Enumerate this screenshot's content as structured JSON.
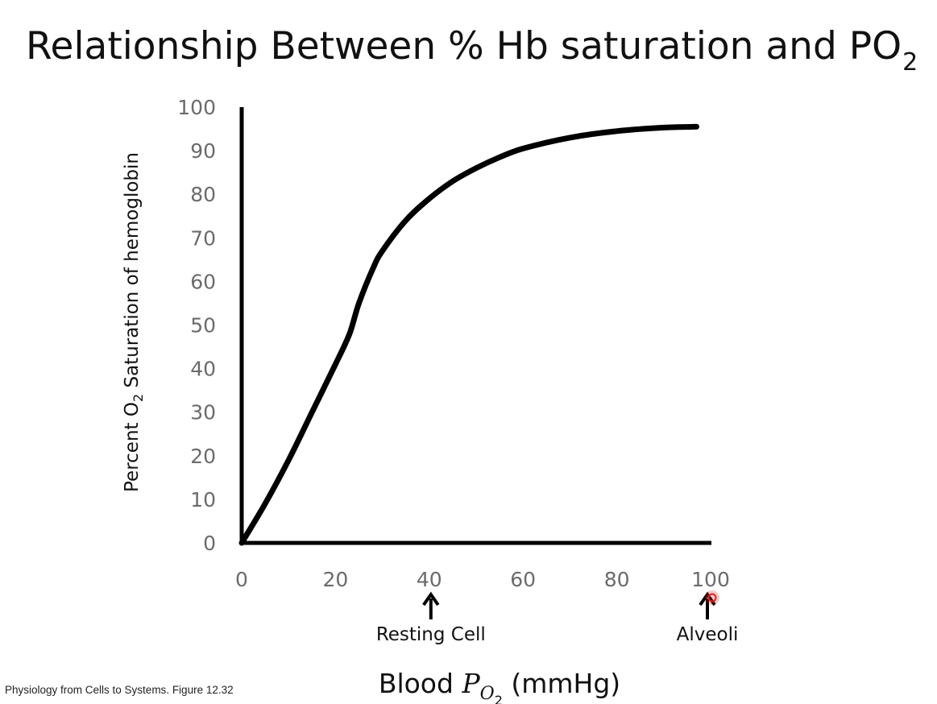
{
  "slide": {
    "title_main": "Relationship Between % Hb saturation and PO",
    "title_sub": "2",
    "source": "Physiology from Cells to Systems. Figure 12.32"
  },
  "chart_data": {
    "type": "line",
    "title": "Relationship Between % Hb saturation and PO2",
    "xlabel": "Blood P O2 (mmHg)",
    "ylabel": "Percent O2 Saturation of hemoglobin",
    "xlabel_parts": {
      "main": "Blood ",
      "italic": "P",
      "sub": "O",
      "subsub": "2",
      "unit": " (mmHg)"
    },
    "ylabel_parts": {
      "pre": "Percent O",
      "sub": "2",
      "post": " Saturation of hemoglobin"
    },
    "xlim": [
      0,
      100
    ],
    "ylim": [
      0,
      100
    ],
    "x_ticks": [
      0,
      20,
      40,
      60,
      80,
      100
    ],
    "y_ticks": [
      0,
      10,
      20,
      30,
      40,
      50,
      60,
      70,
      80,
      90,
      100
    ],
    "grid": false,
    "legend": "none",
    "line_color": "#000000",
    "series": [
      {
        "x": [
          0,
          5,
          10,
          15,
          20,
          23,
          25,
          28,
          30,
          35,
          40,
          45,
          50,
          55,
          60,
          70,
          80,
          90,
          97
        ],
        "values": [
          0,
          9,
          19,
          30,
          41,
          48,
          55,
          63,
          67,
          74,
          79,
          83,
          86,
          88.5,
          90.5,
          93,
          94.5,
          95.3,
          95.5
        ]
      }
    ],
    "annotations": [
      {
        "x": 40,
        "label": "Resting Cell",
        "icon": "up-arrow-icon"
      },
      {
        "x": 100,
        "label": "Alveoli",
        "icon": "up-arrow-icon"
      }
    ],
    "cursor_color": "#e0241f"
  }
}
